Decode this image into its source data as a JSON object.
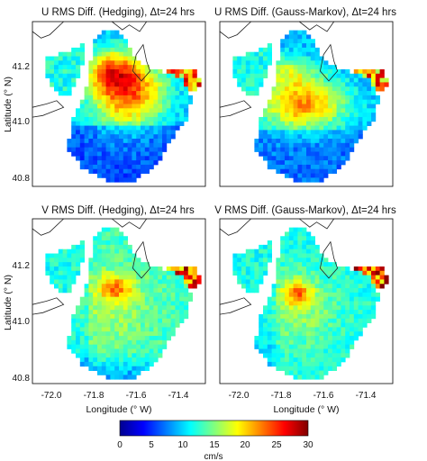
{
  "chart_data": [
    {
      "type": "heatmap",
      "title": "U RMS Diff. (Hedging), Δt=24 hrs",
      "ylabel": "Latitude (° N)",
      "xlabel": "",
      "xlim": [
        -72.1,
        -71.3
      ],
      "ylim": [
        40.75,
        41.35
      ],
      "xticks": [],
      "yticks": [
        "41.2",
        "41.0",
        "40.8"
      ],
      "mode": "u-hedging"
    },
    {
      "type": "heatmap",
      "title": "U RMS Diff. (Gauss-Markov), Δt=24 hrs",
      "ylabel": "",
      "xlabel": "",
      "xlim": [
        -72.1,
        -71.3
      ],
      "ylim": [
        40.75,
        41.35
      ],
      "xticks": [],
      "yticks": [],
      "mode": "u-gauss"
    },
    {
      "type": "heatmap",
      "title": "V RMS Diff. (Hedging), Δt=24 hrs",
      "ylabel": "Latitude (° N)",
      "xlabel": "Longitude (° W)",
      "xlim": [
        -72.1,
        -71.3
      ],
      "ylim": [
        40.75,
        41.35
      ],
      "xticks": [
        "-72.0",
        "-71.8",
        "-71.6",
        "-71.4"
      ],
      "yticks": [
        "41.2",
        "41.0",
        "40.8"
      ],
      "mode": "v-hedging"
    },
    {
      "type": "heatmap",
      "title": "V RMS Diff. (Gauss-Markov), Δt=24 hrs",
      "ylabel": "",
      "xlabel": "Longitude (° W)",
      "xlim": [
        -72.1,
        -71.3
      ],
      "ylim": [
        40.75,
        41.35
      ],
      "xticks": [
        "-72.0",
        "-71.8",
        "-71.6",
        "-71.4"
      ],
      "yticks": [],
      "mode": "v-gauss"
    }
  ],
  "colorbar": {
    "ticks": [
      "0",
      "5",
      "10",
      "15",
      "20",
      "25",
      "30"
    ],
    "min": 0,
    "max": 30,
    "label": "cm/s",
    "colormap": "jet"
  }
}
